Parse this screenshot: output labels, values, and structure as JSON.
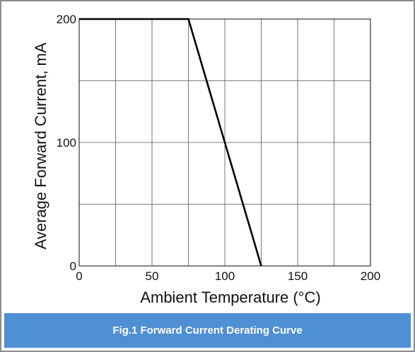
{
  "caption": "Fig.1 Forward Current Derating Curve",
  "chart_data": {
    "type": "line",
    "title": "",
    "xlabel": "Ambient Temperature (°C)",
    "ylabel": "Average Forward Current, mA",
    "xlim": [
      0,
      200
    ],
    "ylim": [
      0,
      200
    ],
    "x_ticks": [
      0,
      25,
      50,
      75,
      100,
      125,
      150,
      175,
      200
    ],
    "x_tick_labels": [
      "0",
      "50",
      "100",
      "150",
      "200"
    ],
    "x_tick_label_values": [
      0,
      50,
      100,
      150,
      200
    ],
    "y_ticks": [
      0,
      50,
      100,
      150,
      200
    ],
    "y_tick_labels": [
      "0",
      "100",
      "200"
    ],
    "y_tick_label_values": [
      0,
      100,
      200
    ],
    "grid": true,
    "legend": "none",
    "series": [
      {
        "x": [
          0,
          75,
          125
        ],
        "y": [
          200,
          200,
          0
        ],
        "color": "#000000"
      }
    ]
  },
  "colors": {
    "caption_background": "#4f8fd4",
    "caption_text": "#ffffff",
    "frame_border": "#8c8c8c",
    "grid": "#555555",
    "line": "#000000"
  }
}
